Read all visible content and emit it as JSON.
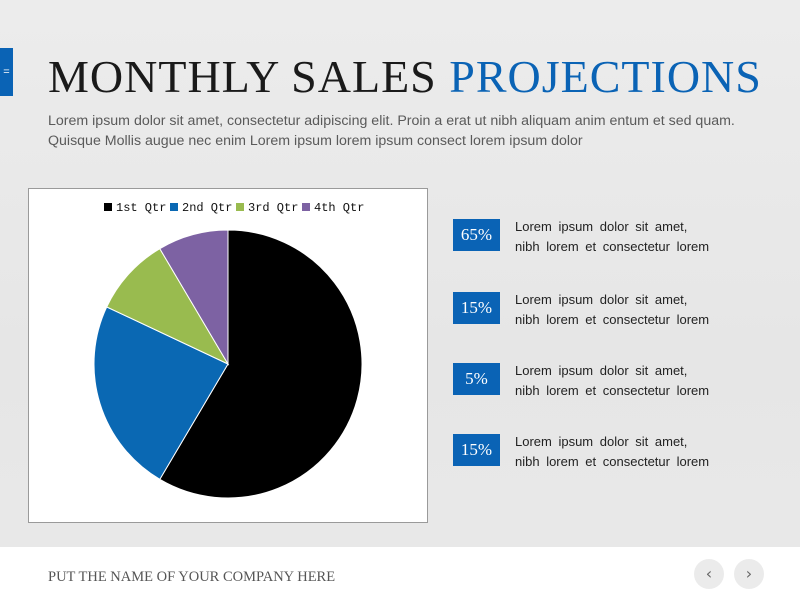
{
  "slide": {
    "side_tab_glyph": "=",
    "title_main": "MONTHLY SALES",
    "title_accent": "PROJECTIONS",
    "subtitle": "Lorem ipsum dolor sit amet, consectetur adipiscing elit. Proin a erat ut nibh aliquam anim entum et sed quam. Quisque Mollis augue nec enim Lorem ipsum lorem ipsum consect lorem ipsum dolor",
    "accent_color": "#0a63b5"
  },
  "stats": [
    {
      "badge": "65%",
      "line1": "Lorem ipsum dolor sit amet,",
      "line2": "nibh lorem et consectetur lorem"
    },
    {
      "badge": "15%",
      "line1": "Lorem ipsum dolor sit amet,",
      "line2": "nibh lorem et consectetur lorem"
    },
    {
      "badge": "5%",
      "line1": "Lorem ipsum dolor sit amet,",
      "line2": "nibh lorem et consectetur lorem"
    },
    {
      "badge": "15%",
      "line1": "Lorem ipsum dolor sit amet,",
      "line2": "nibh lorem et consectetur lorem"
    }
  ],
  "footer": {
    "company": "PUT THE NAME OF YOUR COMPANY HERE",
    "prev_icon": "chevron-left-icon",
    "next_icon": "chevron-right-icon",
    "prev_glyph": "‹",
    "next_glyph": "›"
  },
  "chart_data": {
    "type": "pie",
    "title": "",
    "legend_position": "top",
    "categories": [
      "1st Qtr",
      "2nd Qtr",
      "3rd Qtr",
      "4th Qtr"
    ],
    "values": [
      58.5,
      23.5,
      9.5,
      8.5
    ],
    "colors": [
      "#000000",
      "#0a68b3",
      "#99bb4f",
      "#7d62a3"
    ]
  }
}
